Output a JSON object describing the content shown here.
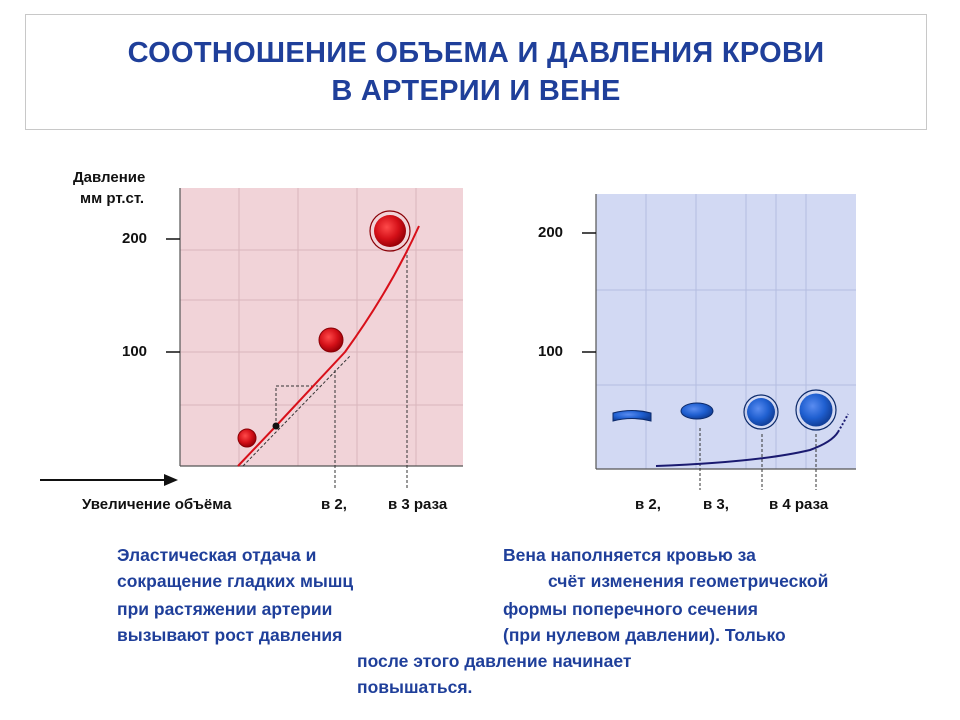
{
  "title": {
    "line1": "СООТНОШЕНИЕ ОБЪЕМА И ДАВЛЕНИЯ КРОВИ",
    "line2": "В АРТЕРИИ И ВЕНЕ"
  },
  "colors": {
    "title": "#1f3f9a",
    "artery_panel": "#f1d3d8",
    "vein_panel": "#d2d9f3",
    "artery_curve": "#d8101a",
    "vein_curve": "#1a1a70",
    "vein_vessel": "#1f5fd0"
  },
  "artery_chart": {
    "ylabel_line1": "Давление",
    "ylabel_line2": "мм рт.ст.",
    "ytick_200": "200",
    "ytick_100": "100",
    "xlabel": "Увеличение объёма",
    "xtick_2": "в 2,",
    "xtick_3": "в 3 раза"
  },
  "vein_chart": {
    "ytick_200": "200",
    "ytick_100": "100",
    "xtick_2": "в 2,",
    "xtick_3": "в 3,",
    "xtick_4": "в 4 раза"
  },
  "captions": {
    "artery": [
      "Эластическая отдача и",
      "сокращение гладких мышц",
      "при растяжении артерии",
      "вызывают рост давления"
    ],
    "vein": [
      "Вена наполняется кровью за",
      "счёт изменения геометрической",
      "формы поперечного сечения",
      "(при нулевом давлении). Только"
    ],
    "bottom": [
      "после этого давление начинает",
      "повышаться."
    ]
  }
}
